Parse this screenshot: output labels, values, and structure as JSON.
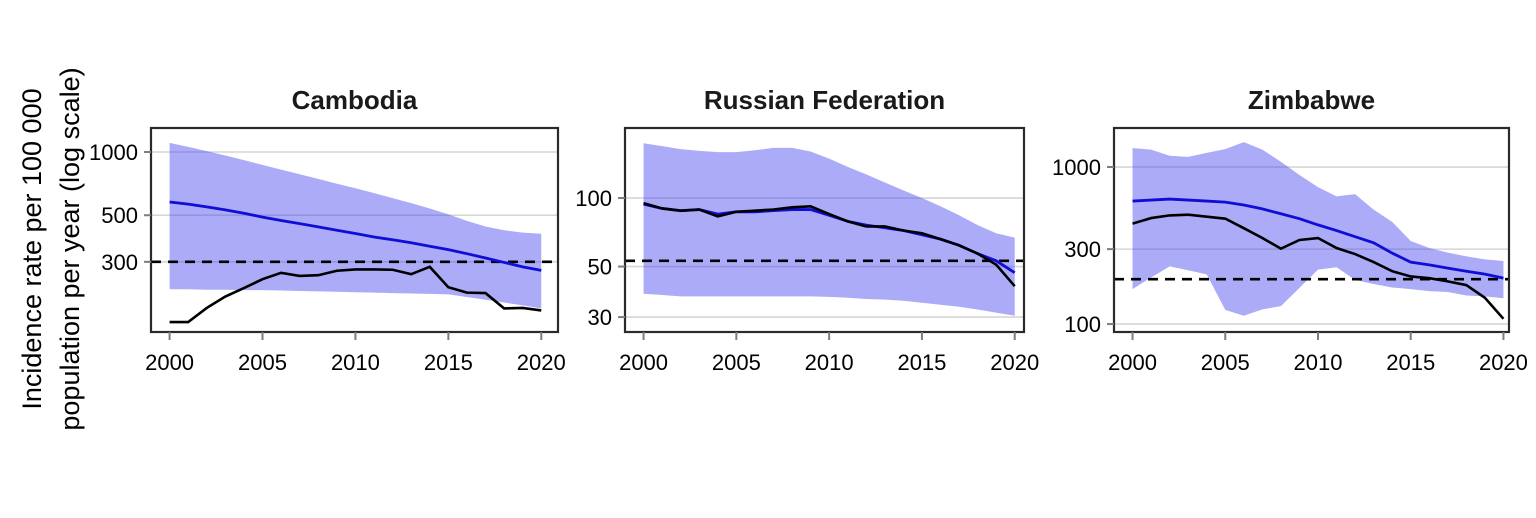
{
  "ylabel": "Incidence rate per 100 000\npopulation per year (log scale)",
  "colors": {
    "estimate_line": "#0e0ed6",
    "notified_line": "#000000",
    "uncertainty_band": "rgba(68,68,238,0.45)",
    "dashed_milestone_line": "#000000",
    "gridline": "#d6d6d6",
    "panel_border": "#2a2a2a",
    "tick_mark": "#7d7d7d",
    "tick_text": "#000000",
    "title_text": "#1a1a1a"
  },
  "chart_data": [
    {
      "type": "line",
      "title": "Cambodia",
      "scale": "log",
      "years": [
        2000,
        2001,
        2002,
        2003,
        2004,
        2005,
        2006,
        2007,
        2008,
        2009,
        2010,
        2011,
        2012,
        2013,
        2014,
        2015,
        2016,
        2017,
        2018,
        2019,
        2020
      ],
      "xticks": [
        2000,
        2005,
        2010,
        2015,
        2020
      ],
      "yticks": [
        1000,
        500,
        300
      ],
      "xlim": [
        1999,
        2020.9
      ],
      "ylim": [
        139,
        1301
      ],
      "dashed_line_value": 300,
      "series": [
        {
          "name": "estimated incidence",
          "values": [
            578,
            565,
            548,
            530,
            511,
            490,
            472,
            456,
            440,
            424,
            409,
            394,
            382,
            370,
            356,
            343,
            328,
            313,
            298,
            284,
            273
          ]
        },
        {
          "name": "notified cases",
          "values": [
            155,
            155,
            181,
            205,
            225,
            248,
            266,
            257,
            259,
            272,
            276,
            276,
            275,
            262,
            284,
            227,
            214,
            213,
            180,
            181,
            176
          ]
        }
      ],
      "band": {
        "name": "uncertainty interval",
        "upper": [
          1105,
          1058,
          1010,
          962,
          915,
          868,
          824,
          784,
          745,
          706,
          672,
          637,
          603,
          571,
          538,
          505,
          470,
          442,
          424,
          413,
          408
        ],
        "lower": [
          222,
          222,
          221,
          221,
          220,
          220,
          219,
          218,
          217,
          216,
          215,
          214,
          213,
          212,
          211,
          210,
          204,
          198,
          192,
          186,
          180
        ]
      }
    },
    {
      "type": "line",
      "title": "Russian Federation",
      "scale": "log",
      "years": [
        2000,
        2001,
        2002,
        2003,
        2004,
        2005,
        2006,
        2007,
        2008,
        2009,
        2010,
        2011,
        2012,
        2013,
        2014,
        2015,
        2016,
        2017,
        2018,
        2019,
        2020
      ],
      "xticks": [
        2000,
        2005,
        2010,
        2015,
        2020
      ],
      "yticks": [
        100,
        50,
        30
      ],
      "xlim": [
        1999,
        2020.5
      ],
      "ylim": [
        25.8,
        203
      ],
      "dashed_line_value": 53,
      "series": [
        {
          "name": "estimated incidence",
          "values": [
            94,
            90,
            88,
            89,
            85,
            87,
            87,
            88,
            89,
            89,
            84,
            79,
            76,
            74,
            72,
            69,
            66,
            62,
            57,
            53,
            47
          ]
        },
        {
          "name": "notified cases",
          "values": [
            95,
            90,
            88,
            89,
            83,
            87,
            88,
            89,
            91,
            92,
            85,
            79,
            75,
            75,
            72,
            70,
            66,
            62,
            57,
            51,
            41
          ]
        }
      ],
      "band": {
        "name": "uncertainty interval",
        "upper": [
          174,
          169,
          164,
          161,
          159,
          159,
          162,
          166,
          166,
          160,
          149,
          137,
          127,
          117,
          108,
          100,
          92,
          84,
          76,
          70,
          67
        ],
        "lower": [
          38,
          37.5,
          37,
          37,
          37,
          37,
          37,
          37,
          37,
          37,
          36.8,
          36.5,
          36,
          35.8,
          35.4,
          34.7,
          34,
          33.3,
          32.4,
          31.4,
          30.4
        ]
      }
    },
    {
      "type": "line",
      "title": "Zimbabwe",
      "scale": "log",
      "years": [
        2000,
        2001,
        2002,
        2003,
        2004,
        2005,
        2006,
        2007,
        2008,
        2009,
        2010,
        2011,
        2012,
        2013,
        2014,
        2015,
        2016,
        2017,
        2018,
        2019,
        2020
      ],
      "xticks": [
        2000,
        2005,
        2010,
        2015,
        2020
      ],
      "yticks": [
        1000,
        300,
        100
      ],
      "xlim": [
        1999,
        2020.3
      ],
      "ylim": [
        89,
        1772
      ],
      "dashed_line_value": 193,
      "series": [
        {
          "name": "estimated incidence",
          "values": [
            607,
            616,
            625,
            616,
            607,
            598,
            573,
            541,
            504,
            469,
            428,
            394,
            360,
            329,
            283,
            248,
            238,
            227,
            217,
            208,
            196
          ]
        },
        {
          "name": "notified cases",
          "values": [
            436,
            473,
            492,
            497,
            483,
            469,
            408,
            353,
            302,
            343,
            353,
            305,
            279,
            248,
            217,
            201,
            196,
            187,
            177,
            147,
            108
          ]
        }
      ],
      "band": {
        "name": "uncertainty interval",
        "upper": [
          1320,
          1290,
          1180,
          1160,
          1230,
          1300,
          1440,
          1290,
          1080,
          890,
          745,
          650,
          672,
          535,
          447,
          338,
          305,
          285,
          270,
          258,
          252
        ],
        "lower": [
          167,
          198,
          233,
          220,
          207,
          123,
          113,
          124,
          130,
          170,
          222,
          230,
          191,
          180,
          171,
          167,
          162,
          160,
          152,
          150,
          146
        ]
      }
    }
  ]
}
